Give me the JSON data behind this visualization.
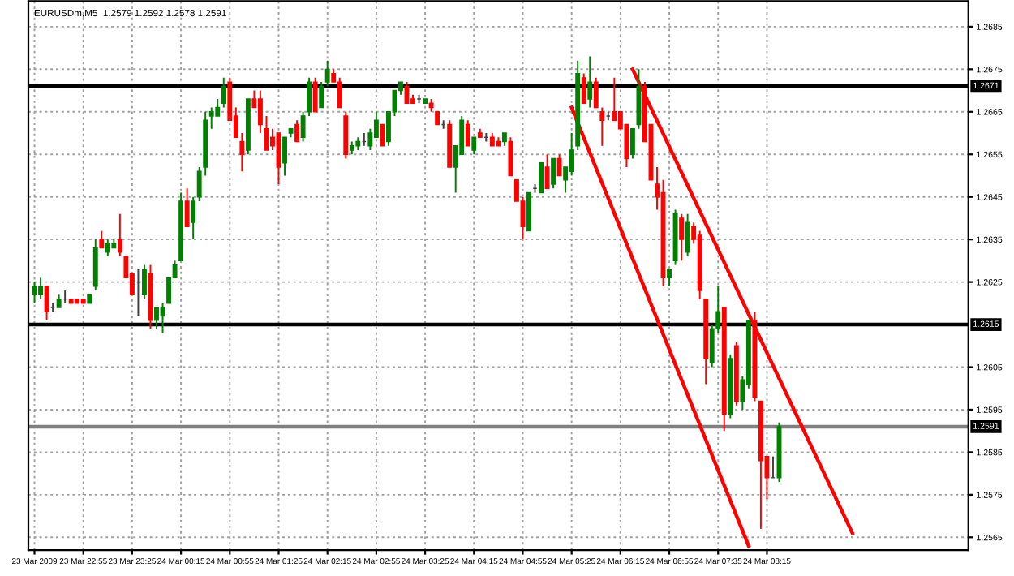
{
  "chart_data": {
    "type": "candlestick",
    "title": "EURUSDm,M5  1.2579 1.2592 1.2578 1.2591",
    "categories": [
      "23 Mar 2009",
      null,
      null,
      null,
      null,
      null,
      null,
      null,
      "23 Mar 22:55",
      null,
      null,
      null,
      null,
      null,
      null,
      null,
      "23 Mar 23:25",
      null,
      null,
      null,
      null,
      null,
      null,
      null,
      "24 Mar 00:15",
      null,
      null,
      null,
      null,
      null,
      null,
      null,
      "24 Mar 00:55",
      null,
      null,
      null,
      null,
      null,
      null,
      null,
      "24 Mar 01:25",
      null,
      null,
      null,
      null,
      null,
      null,
      null,
      "24 Mar 02:15",
      null,
      null,
      null,
      null,
      null,
      null,
      null,
      "24 Mar 02:55",
      null,
      null,
      null,
      null,
      null,
      null,
      null,
      "24 Mar 03:25",
      null,
      null,
      null,
      null,
      null,
      null,
      null,
      "24 Mar 04:15",
      null,
      null,
      null,
      null,
      null,
      null,
      null,
      "24 Mar 04:55",
      null,
      null,
      null,
      null,
      null,
      null,
      null,
      "24 Mar 05:25",
      null,
      null,
      null,
      null,
      null,
      null,
      null,
      "24 Mar 06:15",
      null,
      null,
      null,
      null,
      null,
      null,
      null,
      "24 Mar 06:55",
      null,
      null,
      null,
      null,
      null,
      null,
      null,
      "24 Mar 07:35",
      null,
      null,
      null,
      null,
      null,
      null,
      null,
      "24 Mar 08:15",
      null,
      null,
      null,
      null,
      null,
      null,
      null,
      null,
      null,
      null,
      null,
      null,
      null,
      null,
      null,
      null,
      null,
      null,
      null,
      null,
      null,
      null,
      null,
      null,
      null,
      null,
      null,
      null,
      null,
      null,
      null,
      null
    ],
    "ohlc": [
      [
        1.2622,
        1.2625,
        1.262,
        1.2624
      ],
      [
        1.2622,
        1.2626,
        1.2621,
        1.2624
      ],
      [
        1.2624,
        1.2624,
        1.2616,
        1.2618
      ],
      [
        1.2619,
        1.262,
        1.2618,
        1.2619
      ],
      [
        1.2619,
        1.2622,
        1.2619,
        1.2621
      ],
      [
        1.2621,
        1.2623,
        1.262,
        1.2621
      ],
      [
        1.2621,
        1.2621,
        1.262,
        1.262
      ],
      [
        1.2621,
        1.2621,
        1.262,
        1.262
      ],
      [
        1.2621,
        1.2621,
        1.262,
        1.262
      ],
      [
        1.262,
        1.2622,
        1.262,
        1.2622
      ],
      [
        1.2624,
        1.2635,
        1.2623,
        1.2633
      ],
      [
        1.2635,
        1.2637,
        1.2633,
        1.2633
      ],
      [
        1.2632,
        1.2635,
        1.2631,
        1.2634
      ],
      [
        1.2633,
        1.2635,
        1.2633,
        1.2634
      ],
      [
        1.2635,
        1.2641,
        1.2631,
        1.2632
      ],
      [
        1.2631,
        1.2631,
        1.2626,
        1.2626
      ],
      [
        1.2627,
        1.2627,
        1.2622,
        1.2622
      ],
      [
        1.2625,
        1.2628,
        1.2617,
        1.2625
      ],
      [
        1.2622,
        1.2629,
        1.2621,
        1.2628
      ],
      [
        1.2627,
        1.2629,
        1.2614,
        1.2616
      ],
      [
        1.2616,
        1.2619,
        1.2614,
        1.2619
      ],
      [
        1.2617,
        1.262,
        1.2613,
        1.2619
      ],
      [
        1.262,
        1.2626,
        1.262,
        1.2626
      ],
      [
        1.2626,
        1.263,
        1.2626,
        1.2629
      ],
      [
        1.263,
        1.2646,
        1.263,
        1.2644
      ],
      [
        1.2644,
        1.2647,
        1.2638,
        1.2638
      ],
      [
        1.2639,
        1.2645,
        1.2635,
        1.2644
      ],
      [
        1.2645,
        1.2652,
        1.2644,
        1.2651
      ],
      [
        1.2652,
        1.2665,
        1.265,
        1.2663
      ],
      [
        1.2664,
        1.2666,
        1.2661,
        1.2665
      ],
      [
        1.2664,
        1.2668,
        1.2664,
        1.2666
      ],
      [
        1.2667,
        1.2673,
        1.2666,
        1.2671
      ],
      [
        1.2672,
        1.2673,
        1.2663,
        1.2663
      ],
      [
        1.2664,
        1.2666,
        1.2659,
        1.2659
      ],
      [
        1.2658,
        1.266,
        1.2651,
        1.2655
      ],
      [
        1.2656,
        1.2668,
        1.2655,
        1.2668
      ],
      [
        1.2668,
        1.267,
        1.2666,
        1.2666
      ],
      [
        1.2668,
        1.267,
        1.266,
        1.2662
      ],
      [
        1.2661,
        1.2664,
        1.2656,
        1.2656
      ],
      [
        1.2659,
        1.2661,
        1.2656,
        1.2657
      ],
      [
        1.266,
        1.266,
        1.2648,
        1.2652
      ],
      [
        1.2653,
        1.2659,
        1.265,
        1.2659
      ],
      [
        1.266,
        1.2661,
        1.2659,
        1.2661
      ],
      [
        1.2662,
        1.2663,
        1.2658,
        1.2658
      ],
      [
        1.2659,
        1.2665,
        1.2658,
        1.2664
      ],
      [
        1.2665,
        1.2673,
        1.2664,
        1.2672
      ],
      [
        1.2672,
        1.2673,
        1.2665,
        1.2665
      ],
      [
        1.2666,
        1.2672,
        1.2666,
        1.2671
      ],
      [
        1.2672,
        1.2677,
        1.2671,
        1.2675
      ],
      [
        1.2674,
        1.2675,
        1.2672,
        1.2672
      ],
      [
        1.2672,
        1.2673,
        1.2666,
        1.2666
      ],
      [
        1.2664,
        1.2665,
        1.2654,
        1.2655
      ],
      [
        1.2656,
        1.2658,
        1.2655,
        1.2657
      ],
      [
        1.2657,
        1.2659,
        1.2656,
        1.2658
      ],
      [
        1.2658,
        1.266,
        1.2657,
        1.2658
      ],
      [
        1.2657,
        1.2661,
        1.2656,
        1.266
      ],
      [
        1.2659,
        1.2665,
        1.2659,
        1.2663
      ],
      [
        1.2662,
        1.2662,
        1.2657,
        1.2657
      ],
      [
        1.2658,
        1.2665,
        1.2657,
        1.2665
      ],
      [
        1.2665,
        1.267,
        1.2664,
        1.267
      ],
      [
        1.267,
        1.2672,
        1.2669,
        1.2672
      ],
      [
        1.2671,
        1.2672,
        1.2667,
        1.2667
      ],
      [
        1.2668,
        1.2669,
        1.2667,
        1.2667
      ],
      [
        1.2668,
        1.2669,
        1.2667,
        1.2668
      ],
      [
        1.2667,
        1.2668,
        1.2667,
        1.2668
      ],
      [
        1.2667,
        1.2668,
        1.2665,
        1.2666
      ],
      [
        1.2665,
        1.2665,
        1.2662,
        1.2662
      ],
      [
        1.2662,
        1.2663,
        1.2661,
        1.2662
      ],
      [
        1.2662,
        1.2663,
        1.2652,
        1.2652
      ],
      [
        1.2652,
        1.2657,
        1.2646,
        1.2657
      ],
      [
        1.2655,
        1.2664,
        1.2655,
        1.2663
      ],
      [
        1.2662,
        1.2663,
        1.2657,
        1.2657
      ],
      [
        1.2656,
        1.2659,
        1.2655,
        1.2659
      ],
      [
        1.266,
        1.2661,
        1.2659,
        1.2659
      ],
      [
        1.2659,
        1.266,
        1.2658,
        1.2659
      ],
      [
        1.2659,
        1.266,
        1.2657,
        1.2657
      ],
      [
        1.2658,
        1.2659,
        1.2657,
        1.2657
      ],
      [
        1.2658,
        1.266,
        1.2657,
        1.266
      ],
      [
        1.2658,
        1.2659,
        1.265,
        1.265
      ],
      [
        1.2649,
        1.2649,
        1.2644,
        1.2644
      ],
      [
        1.2644,
        1.2645,
        1.2635,
        1.2638
      ],
      [
        1.2637,
        1.2646,
        1.2637,
        1.2646
      ],
      [
        1.2647,
        1.2648,
        1.2646,
        1.2647
      ],
      [
        1.2646,
        1.2653,
        1.2646,
        1.2653
      ],
      [
        1.2652,
        1.2655,
        1.2647,
        1.2647
      ],
      [
        1.2648,
        1.2654,
        1.2647,
        1.2654
      ],
      [
        1.2654,
        1.2655,
        1.265,
        1.265
      ],
      [
        1.2649,
        1.2652,
        1.2646,
        1.2652
      ],
      [
        1.2651,
        1.266,
        1.265,
        1.2656
      ],
      [
        1.2657,
        1.2677,
        1.2656,
        1.2674
      ],
      [
        1.2673,
        1.2674,
        1.2667,
        1.2667
      ],
      [
        1.2668,
        1.2678,
        1.2666,
        1.2672
      ],
      [
        1.2672,
        1.2673,
        1.2666,
        1.2666
      ],
      [
        1.2665,
        1.2666,
        1.2657,
        1.2663
      ],
      [
        1.2664,
        1.2665,
        1.2663,
        1.2664
      ],
      [
        1.2665,
        1.2673,
        1.2663,
        1.2663
      ],
      [
        1.2665,
        1.2665,
        1.2661,
        1.2661
      ],
      [
        1.2662,
        1.2662,
        1.2652,
        1.2654
      ],
      [
        1.2655,
        1.2661,
        1.2654,
        1.2661
      ],
      [
        1.2662,
        1.2675,
        1.2661,
        1.2671
      ],
      [
        1.2671,
        1.2672,
        1.2658,
        1.2658
      ],
      [
        1.2662,
        1.2662,
        1.2649,
        1.2649
      ],
      [
        1.2648,
        1.2652,
        1.2642,
        1.2645
      ],
      [
        1.2646,
        1.2649,
        1.2624,
        1.2626
      ],
      [
        1.2626,
        1.2628,
        1.2624,
        1.2628
      ],
      [
        1.263,
        1.2642,
        1.2629,
        1.2641
      ],
      [
        1.264,
        1.2641,
        1.263,
        1.2635
      ],
      [
        1.2632,
        1.2641,
        1.2631,
        1.2639
      ],
      [
        1.2638,
        1.2639,
        1.2634,
        1.2635
      ],
      [
        1.2636,
        1.2637,
        1.2621,
        1.2623
      ],
      [
        1.2621,
        1.2621,
        1.2601,
        1.2607
      ],
      [
        1.2606,
        1.2615,
        1.2605,
        1.2614
      ],
      [
        1.2614,
        1.2624,
        1.2613,
        1.2618
      ],
      [
        1.2619,
        1.2619,
        1.259,
        1.2594
      ],
      [
        1.2594,
        1.2608,
        1.2593,
        1.2607
      ],
      [
        1.261,
        1.2611,
        1.2596,
        1.2597
      ],
      [
        1.2597,
        1.2603,
        1.2595,
        1.2602
      ],
      [
        1.2601,
        1.2616,
        1.26,
        1.2616
      ],
      [
        1.2616,
        1.2618,
        1.2597,
        1.2598
      ],
      [
        1.2597,
        1.2597,
        1.2567,
        1.2583
      ],
      [
        1.2584,
        1.2584,
        1.2574,
        1.2579
      ],
      [
        1.2579,
        1.2584,
        1.2579,
        1.2579
      ],
      [
        1.2579,
        1.2592,
        1.2578,
        1.2591
      ],
      null,
      null,
      null,
      null,
      null,
      null,
      null,
      null,
      null,
      null,
      null,
      null,
      null,
      null,
      null,
      null,
      null,
      null,
      null,
      null,
      null,
      null,
      null,
      null,
      null,
      null,
      null,
      null,
      null,
      null
    ],
    "colors": [
      "#008000",
      "#008000",
      "#ff0000",
      "#404040",
      "#008000",
      "#404040",
      "#ff0000",
      "#ff0000",
      "#ff0000",
      "#008000",
      "#008000",
      "#ff0000",
      "#008000",
      "#008000",
      "#ff0000",
      "#ff0000",
      "#ff0000",
      "#404040",
      "#008000",
      "#ff0000",
      "#008000",
      "#008000",
      "#008000",
      "#008000",
      "#008000",
      "#ff0000",
      "#008000",
      "#008000",
      "#008000",
      "#008000",
      "#008000",
      "#008000",
      "#ff0000",
      "#ff0000",
      "#ff0000",
      "#008000",
      "#ff0000",
      "#ff0000",
      "#ff0000",
      "#ff0000",
      "#ff0000",
      "#008000",
      "#008000",
      "#ff0000",
      "#008000",
      "#008000",
      "#ff0000",
      "#008000",
      "#008000",
      "#ff0000",
      "#ff0000",
      "#ff0000",
      "#008000",
      "#008000",
      "#404040",
      "#008000",
      "#008000",
      "#ff0000",
      "#008000",
      "#008000",
      "#008000",
      "#ff0000",
      "#ff0000",
      "#404040",
      "#008000",
      "#ff0000",
      "#ff0000",
      "#404040",
      "#ff0000",
      "#008000",
      "#008000",
      "#ff0000",
      "#008000",
      "#ff0000",
      "#404040",
      "#ff0000",
      "#ff0000",
      "#008000",
      "#ff0000",
      "#ff0000",
      "#ff0000",
      "#008000",
      "#404040",
      "#008000",
      "#ff0000",
      "#008000",
      "#ff0000",
      "#008000",
      "#008000",
      "#008000",
      "#ff0000",
      "#008000",
      "#ff0000",
      "#ff0000",
      "#404040",
      "#ff0000",
      "#ff0000",
      "#ff0000",
      "#008000",
      "#008000",
      "#ff0000",
      "#ff0000",
      "#ff0000",
      "#ff0000",
      "#008000",
      "#008000",
      "#ff0000",
      "#008000",
      "#ff0000",
      "#ff0000",
      "#ff0000",
      "#008000",
      "#008000",
      "#ff0000",
      "#008000",
      "#ff0000",
      "#008000",
      "#008000",
      "#ff0000",
      "#ff0000",
      "#ff0000",
      "#404040",
      "#008000",
      null,
      null,
      null,
      null,
      null,
      null,
      null,
      null,
      null,
      null,
      null,
      null,
      null,
      null,
      null,
      null,
      null,
      null,
      null,
      null,
      null,
      null,
      null,
      null,
      null,
      null,
      null,
      null,
      null,
      null
    ],
    "series": [
      {
        "type": "line",
        "color": "#ff0000",
        "values": [
          null,
          null,
          null,
          null,
          null,
          null,
          null,
          null,
          null,
          null,
          null,
          null,
          null,
          null,
          null,
          null,
          null,
          null,
          null,
          null,
          null,
          null,
          null,
          null,
          null,
          null,
          null,
          null,
          null,
          null,
          null,
          null,
          null,
          null,
          null,
          null,
          null,
          null,
          null,
          null,
          null,
          null,
          null,
          null,
          null,
          null,
          null,
          null,
          null,
          null,
          null,
          null,
          null,
          null,
          null,
          null,
          null,
          null,
          null,
          null,
          null,
          null,
          null,
          null,
          null,
          null,
          null,
          null,
          null,
          null,
          null,
          null,
          null,
          null,
          null,
          null,
          null,
          null,
          null,
          null,
          null,
          null,
          null,
          null,
          null,
          null,
          null,
          null,
          null,
          null,
          null,
          null,
          null,
          null,
          null,
          null,
          null,
          null,
          1.2675,
          null,
          null,
          null,
          null,
          null,
          null,
          null,
          null,
          null,
          null,
          null,
          null,
          null,
          null,
          null,
          null,
          null,
          null,
          null,
          null,
          null,
          null,
          null,
          null,
          null,
          null,
          null,
          null,
          null,
          null,
          null,
          null,
          null,
          null,
          null,
          1.2566,
          null,
          null,
          null,
          null,
          null,
          null,
          null,
          null,
          null,
          null,
          null,
          null,
          null,
          null,
          null,
          null,
          null,
          null
        ]
      },
      {
        "type": "line",
        "color": "#ff0000",
        "values": [
          null,
          null,
          null,
          null,
          null,
          null,
          null,
          null,
          null,
          null,
          null,
          null,
          null,
          null,
          null,
          null,
          null,
          null,
          null,
          null,
          null,
          null,
          null,
          null,
          null,
          null,
          null,
          null,
          null,
          null,
          null,
          null,
          null,
          null,
          null,
          null,
          null,
          null,
          null,
          null,
          null,
          null,
          null,
          null,
          null,
          null,
          null,
          null,
          null,
          null,
          null,
          null,
          null,
          null,
          null,
          null,
          null,
          null,
          null,
          null,
          null,
          null,
          null,
          null,
          null,
          null,
          null,
          null,
          null,
          null,
          null,
          null,
          null,
          null,
          null,
          null,
          null,
          null,
          null,
          null,
          null,
          null,
          null,
          null,
          null,
          null,
          null,
          null,
          1.2666,
          null,
          null,
          null,
          null,
          null,
          null,
          null,
          null,
          null,
          null,
          null,
          null,
          null,
          null,
          null,
          null,
          null,
          null,
          null,
          null,
          null,
          null,
          null,
          null,
          null,
          null,
          null,
          null,
          1.2563,
          null,
          null,
          null,
          null,
          null,
          null,
          null,
          null,
          null,
          null,
          null,
          null,
          null,
          null,
          null,
          null,
          null,
          null,
          null,
          null,
          null,
          null,
          null,
          null,
          null,
          null,
          null,
          null,
          null,
          null,
          null,
          null,
          null,
          null,
          null
        ]
      }
    ],
    "ylim": [
      1.2562,
      1.2691
    ],
    "yticks": [
      {
        "value": 1.2685,
        "label": "1.2685"
      },
      {
        "value": 1.2675,
        "label": "1.2675"
      },
      {
        "value": 1.2665,
        "label": "1.2665"
      },
      {
        "value": 1.2655,
        "label": "1.2655"
      },
      {
        "value": 1.2645,
        "label": "1.2645"
      },
      {
        "value": 1.2635,
        "label": "1.2635"
      },
      {
        "value": 1.2625,
        "label": "1.2625"
      },
      {
        "value": 1.2605,
        "label": "1.2605"
      },
      {
        "value": 1.2595,
        "label": "1.2595"
      },
      {
        "value": 1.2585,
        "label": "1.2585"
      },
      {
        "value": 1.2575,
        "label": "1.2575"
      },
      {
        "value": 1.2565,
        "label": "1.2565"
      }
    ],
    "ref_lines": [
      {
        "axis": "y",
        "value": 1.2671,
        "label": "1.2671",
        "color": "#000000"
      },
      {
        "axis": "y",
        "value": 1.2615,
        "label": "1.2615",
        "color": "#000000"
      },
      {
        "axis": "y",
        "value": 1.2591,
        "label": "1.2591",
        "color": "#808080"
      }
    ],
    "grid": true,
    "line_style": "solid"
  }
}
